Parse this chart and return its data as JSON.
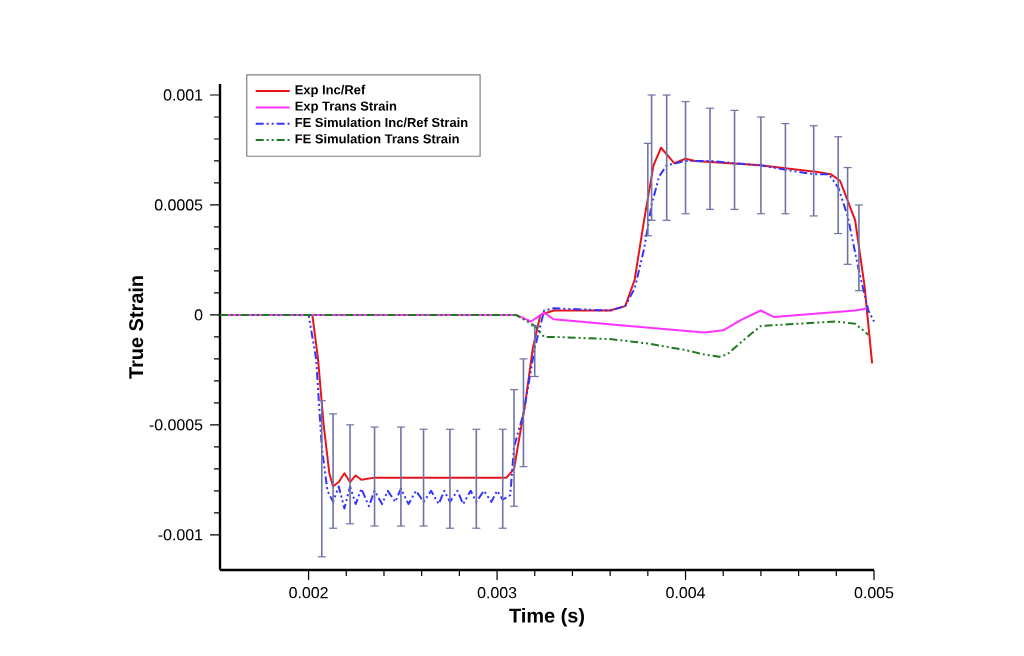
{
  "chart_data": {
    "type": "line",
    "xlabel": "Time (s)",
    "ylabel": "True Strain",
    "xlim": [
      0.00153,
      0.005
    ],
    "ylim": [
      -0.00116,
      0.00105
    ],
    "xticks": [
      0.002,
      0.003,
      0.004,
      0.005
    ],
    "yticks": [
      -0.001,
      -0.0005,
      0,
      0.0005,
      0.001
    ],
    "grid": false,
    "legend": "top left",
    "marker": "none",
    "series": [
      {
        "name": "Exp Inc/Ref",
        "color": "#e8141c",
        "line_style": "solid",
        "x": [
          0.00153,
          0.00202,
          0.00205,
          0.00208,
          0.00211,
          0.00213,
          0.00216,
          0.00219,
          0.00222,
          0.00225,
          0.00228,
          0.00235,
          0.0027,
          0.00305,
          0.00309,
          0.00312,
          0.00315,
          0.00319,
          0.00323,
          0.0033,
          0.0036,
          0.00368,
          0.00373,
          0.00378,
          0.00383,
          0.00387,
          0.0039,
          0.00394,
          0.004,
          0.00405,
          0.0044,
          0.0047,
          0.00477,
          0.00482,
          0.0049,
          0.00495,
          0.00499
        ],
        "values": [
          0,
          0,
          -0.0002,
          -0.0005,
          -0.00072,
          -0.00078,
          -0.00076,
          -0.00072,
          -0.00076,
          -0.00073,
          -0.00075,
          -0.00074,
          -0.00074,
          -0.00074,
          -0.0007,
          -0.00055,
          -0.0004,
          -0.00015,
          0,
          2e-05,
          2e-05,
          4e-05,
          0.00016,
          0.00043,
          0.00068,
          0.00076,
          0.00073,
          0.00069,
          0.00071,
          0.0007,
          0.00068,
          0.00065,
          0.00064,
          0.00061,
          0.00043,
          0.00013,
          -0.00022
        ]
      },
      {
        "name": "Exp Trans Strain",
        "color": "#ff33ff",
        "line_style": "solid",
        "x": [
          0.00153,
          0.0031,
          0.00318,
          0.00325,
          0.0033,
          0.0037,
          0.0041,
          0.0042,
          0.0043,
          0.0044,
          0.00447,
          0.0049,
          0.00497
        ],
        "values": [
          0,
          0,
          -3e-05,
          1e-05,
          -2e-05,
          -5e-05,
          -8e-05,
          -7e-05,
          -2e-05,
          2e-05,
          -1e-05,
          2e-05,
          3e-05
        ]
      },
      {
        "name": "FE Simulation Inc/Ref Strain",
        "color": "#3333ff",
        "line_style": "dashed",
        "x": [
          0.00153,
          0.002,
          0.00204,
          0.00207,
          0.0021,
          0.00213,
          0.00216,
          0.00219,
          0.00222,
          0.00225,
          0.00228,
          0.00232,
          0.00235,
          0.00239,
          0.00242,
          0.00246,
          0.00249,
          0.00253,
          0.00257,
          0.00261,
          0.00265,
          0.00269,
          0.00272,
          0.00275,
          0.00279,
          0.00282,
          0.00286,
          0.00289,
          0.00293,
          0.00297,
          0.003,
          0.00303,
          0.00307,
          0.00309,
          0.00314,
          0.0032,
          0.00325,
          0.0033,
          0.0036,
          0.00368,
          0.00373,
          0.00378,
          0.0038,
          0.00382,
          0.00386,
          0.0039,
          0.004,
          0.00413,
          0.00426,
          0.0044,
          0.00453,
          0.00468,
          0.00476,
          0.00481,
          0.00486,
          0.00492,
          0.00497,
          0.005
        ],
        "values": [
          0,
          0,
          -0.0002,
          -0.0006,
          -0.0008,
          -0.00085,
          -0.00078,
          -0.00088,
          -0.00078,
          -0.00086,
          -0.00079,
          -0.00087,
          -0.0008,
          -0.00086,
          -0.0008,
          -0.00085,
          -0.00079,
          -0.00086,
          -0.0008,
          -0.00085,
          -0.0008,
          -0.00086,
          -0.0008,
          -0.00085,
          -0.0008,
          -0.00086,
          -0.0008,
          -0.00085,
          -0.0008,
          -0.00085,
          -0.0008,
          -0.00084,
          -0.00082,
          -0.0006,
          -0.00045,
          -0.00015,
          2e-05,
          3e-05,
          2e-05,
          4e-05,
          0.00012,
          0.0003,
          0.0004,
          0.0005,
          0.00063,
          0.00068,
          0.0007,
          0.0007,
          0.00069,
          0.00068,
          0.00066,
          0.00064,
          0.00064,
          0.00058,
          0.00045,
          0.0002,
          2e-05,
          -3e-05
        ],
        "errors": [
          null,
          null,
          null,
          [
            -0.0011,
            -0.00039
          ],
          null,
          [
            -0.00097,
            -0.00045
          ],
          null,
          null,
          [
            -0.00095,
            -0.0005
          ],
          null,
          null,
          null,
          [
            -0.00096,
            -0.00051
          ],
          null,
          null,
          null,
          [
            -0.00096,
            -0.00051
          ],
          null,
          null,
          [
            -0.00096,
            -0.00052
          ],
          null,
          null,
          null,
          [
            -0.00097,
            -0.00052
          ],
          null,
          null,
          null,
          [
            -0.00097,
            -0.00052
          ],
          null,
          null,
          null,
          [
            -0.00097,
            -0.00052
          ],
          null,
          [
            -0.00087,
            -0.00034
          ],
          [
            -0.00069,
            -0.0002
          ],
          [
            -0.00028,
            -5e-05
          ],
          null,
          null,
          null,
          null,
          null,
          null,
          [
            0.00036,
            0.00078
          ],
          [
            0.00043,
            0.001
          ],
          null,
          [
            0.00043,
            0.001
          ],
          [
            0.00046,
            0.00097
          ],
          [
            0.00048,
            0.00094
          ],
          [
            0.00048,
            0.00093
          ],
          [
            0.00046,
            0.0009
          ],
          [
            0.00046,
            0.00087
          ],
          [
            0.00045,
            0.00086
          ],
          null,
          [
            0.00037,
            0.00081
          ],
          [
            0.00023,
            0.00067
          ],
          [
            0.00011,
            0.0005
          ],
          null,
          null
        ]
      },
      {
        "name": "FE Simulation Trans Strain",
        "color": "#1f7a1f",
        "line_style": "dashed",
        "x": [
          0.00153,
          0.0031,
          0.0032,
          0.00325,
          0.0033,
          0.0036,
          0.0038,
          0.004,
          0.0041,
          0.00418,
          0.00422,
          0.0043,
          0.0044,
          0.0046,
          0.0048,
          0.0049,
          0.00497
        ],
        "values": [
          0,
          0,
          -5e-05,
          -0.0001,
          -0.0001,
          -0.00011,
          -0.00013,
          -0.00016,
          -0.00018,
          -0.00019,
          -0.00018,
          -0.00012,
          -5e-05,
          -4e-05,
          -3e-05,
          -4e-05,
          -9e-05
        ]
      }
    ]
  }
}
